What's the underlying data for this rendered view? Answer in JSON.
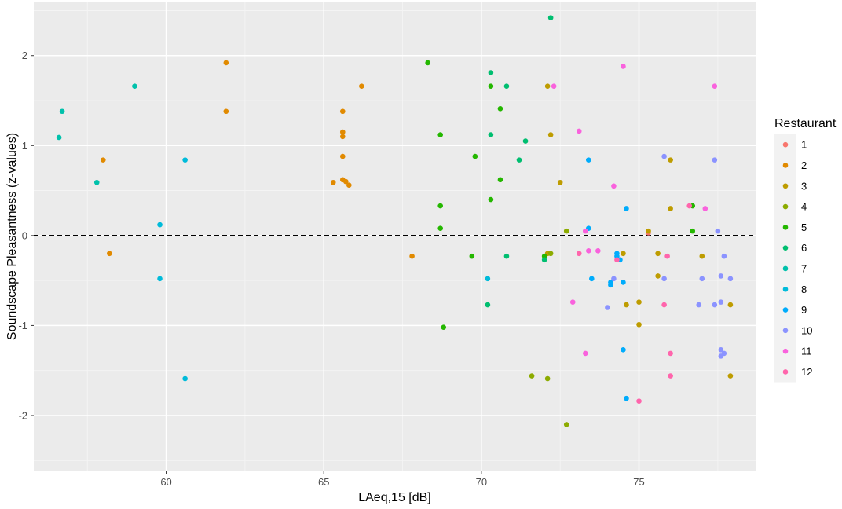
{
  "chart_data": {
    "type": "scatter",
    "xlabel": "LAeq,15 [dB]",
    "ylabel": "Soundscape Pleasantness (z-values)",
    "xlim": [
      55.8,
      78.7
    ],
    "ylim": [
      -2.62,
      2.6
    ],
    "x_ticks": [
      60,
      65,
      70,
      75
    ],
    "y_ticks": [
      -2,
      -1,
      0,
      1,
      2
    ],
    "x_tick_labels": [
      "60",
      "65",
      "70",
      "75"
    ],
    "y_tick_labels": [
      "-2",
      "-1",
      "0",
      "1",
      "2"
    ],
    "reference_line": {
      "y": 0,
      "style": "dashed"
    },
    "grid": true,
    "legend": {
      "title": "Restaurant",
      "position": "right"
    },
    "series": [
      {
        "name": "1",
        "color": "#F8766D",
        "points": [
          [
            75.3,
            0.03
          ]
        ]
      },
      {
        "name": "2",
        "color": "#E18A00",
        "points": [
          [
            58.0,
            0.84
          ],
          [
            58.2,
            -0.2
          ],
          [
            61.9,
            1.92
          ],
          [
            61.9,
            1.38
          ],
          [
            65.3,
            0.59
          ],
          [
            65.6,
            1.38
          ],
          [
            65.6,
            1.15
          ],
          [
            65.6,
            1.1
          ],
          [
            65.6,
            0.88
          ],
          [
            65.6,
            0.62
          ],
          [
            65.7,
            0.6
          ],
          [
            65.8,
            0.56
          ],
          [
            66.2,
            1.66
          ],
          [
            67.8,
            -0.23
          ]
        ]
      },
      {
        "name": "3",
        "color": "#BE9C00",
        "points": [
          [
            72.1,
            1.66
          ],
          [
            72.2,
            1.12
          ],
          [
            72.5,
            0.59
          ],
          [
            72.1,
            -0.2
          ],
          [
            74.5,
            -0.2
          ],
          [
            74.6,
            -0.77
          ],
          [
            75.0,
            -0.74
          ],
          [
            75.0,
            -0.99
          ],
          [
            75.3,
            0.05
          ],
          [
            75.6,
            -0.2
          ],
          [
            75.6,
            -0.45
          ],
          [
            76.0,
            0.84
          ],
          [
            76.0,
            0.3
          ],
          [
            77.0,
            -0.23
          ],
          [
            77.9,
            -0.77
          ],
          [
            77.9,
            -1.56
          ]
        ]
      },
      {
        "name": "4",
        "color": "#8CAB00",
        "points": [
          [
            71.6,
            -1.56
          ],
          [
            72.1,
            -1.59
          ],
          [
            72.7,
            -2.1
          ],
          [
            72.7,
            0.05
          ],
          [
            72.2,
            -0.2
          ]
        ]
      },
      {
        "name": "5",
        "color": "#24B700",
        "points": [
          [
            68.3,
            1.92
          ],
          [
            68.7,
            1.12
          ],
          [
            68.7,
            0.33
          ],
          [
            68.7,
            0.08
          ],
          [
            68.8,
            -1.02
          ],
          [
            69.8,
            0.88
          ],
          [
            69.7,
            -0.23
          ],
          [
            70.3,
            1.66
          ],
          [
            70.3,
            0.4
          ],
          [
            70.6,
            1.41
          ],
          [
            70.6,
            0.62
          ],
          [
            72.0,
            -0.23
          ],
          [
            76.7,
            0.33
          ],
          [
            76.7,
            0.05
          ]
        ]
      },
      {
        "name": "6",
        "color": "#00BE70",
        "points": [
          [
            70.3,
            1.81
          ],
          [
            70.3,
            1.12
          ],
          [
            70.8,
            1.66
          ],
          [
            70.8,
            -0.23
          ],
          [
            71.2,
            0.84
          ],
          [
            71.4,
            1.05
          ],
          [
            72.2,
            2.42
          ],
          [
            72.0,
            -0.27
          ],
          [
            70.2,
            -0.77
          ]
        ]
      },
      {
        "name": "7",
        "color": "#00C1AB",
        "points": [
          [
            56.7,
            1.38
          ],
          [
            56.6,
            1.09
          ],
          [
            57.8,
            0.59
          ],
          [
            59.0,
            1.66
          ]
        ]
      },
      {
        "name": "8",
        "color": "#00BBDA",
        "points": [
          [
            59.8,
            0.12
          ],
          [
            59.8,
            -0.48
          ],
          [
            60.6,
            0.84
          ],
          [
            60.6,
            -1.59
          ],
          [
            70.2,
            -0.48
          ]
        ]
      },
      {
        "name": "9",
        "color": "#00ACFC",
        "points": [
          [
            73.4,
            0.84
          ],
          [
            73.4,
            0.08
          ],
          [
            73.5,
            -0.48
          ],
          [
            74.1,
            -0.52
          ],
          [
            74.1,
            -0.55
          ],
          [
            74.3,
            -0.2
          ],
          [
            74.3,
            -0.23
          ],
          [
            74.4,
            -0.27
          ],
          [
            74.5,
            -0.52
          ],
          [
            74.5,
            -1.27
          ],
          [
            74.6,
            0.3
          ],
          [
            74.6,
            -1.81
          ]
        ]
      },
      {
        "name": "10",
        "color": "#8B93FF",
        "points": [
          [
            74.0,
            -0.8
          ],
          [
            74.2,
            -0.48
          ],
          [
            75.8,
            0.88
          ],
          [
            75.8,
            -0.48
          ],
          [
            76.9,
            -0.77
          ],
          [
            77.0,
            -0.48
          ],
          [
            77.4,
            0.84
          ],
          [
            77.4,
            -0.77
          ],
          [
            77.6,
            -0.45
          ],
          [
            77.6,
            -0.74
          ],
          [
            77.6,
            -1.27
          ],
          [
            77.6,
            -1.34
          ],
          [
            77.7,
            -1.31
          ],
          [
            77.7,
            -0.23
          ],
          [
            77.9,
            -0.48
          ],
          [
            77.5,
            0.05
          ]
        ]
      },
      {
        "name": "11",
        "color": "#F962DD",
        "points": [
          [
            72.3,
            1.66
          ],
          [
            72.9,
            -0.74
          ],
          [
            73.1,
            1.16
          ],
          [
            73.3,
            -1.31
          ],
          [
            73.4,
            -0.17
          ],
          [
            73.7,
            -0.17
          ],
          [
            74.2,
            0.55
          ],
          [
            74.5,
            1.88
          ],
          [
            77.1,
            0.3
          ],
          [
            77.4,
            1.66
          ],
          [
            73.3,
            0.05
          ]
        ]
      },
      {
        "name": "12",
        "color": "#FF65AC",
        "points": [
          [
            73.1,
            -0.2
          ],
          [
            75.0,
            -1.84
          ],
          [
            75.8,
            -0.77
          ],
          [
            75.9,
            -0.23
          ],
          [
            76.0,
            -1.31
          ],
          [
            76.0,
            -1.56
          ],
          [
            76.6,
            0.33
          ],
          [
            74.3,
            -0.27
          ]
        ]
      }
    ]
  }
}
